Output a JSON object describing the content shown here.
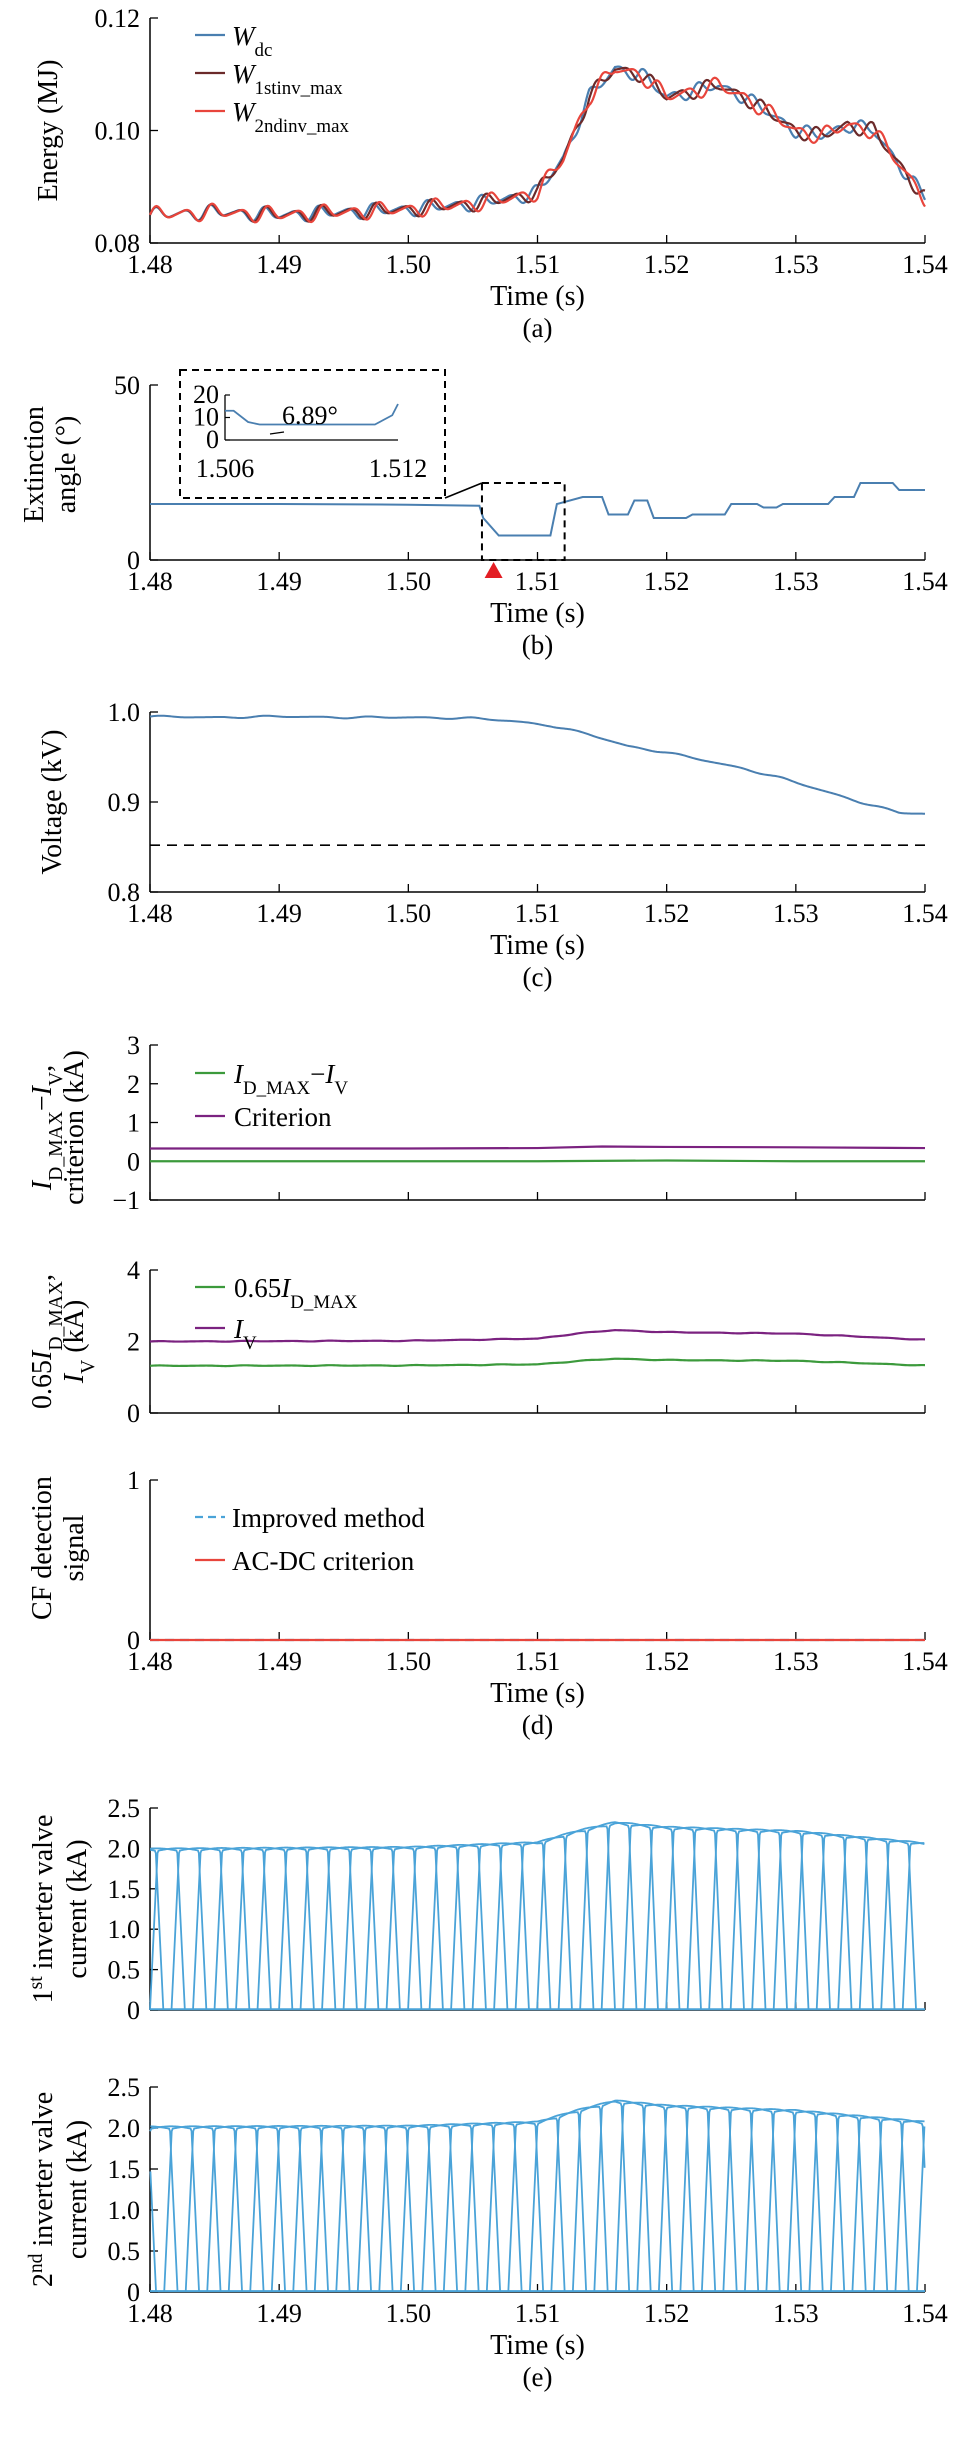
{
  "chart_data": [
    {
      "id": "a",
      "type": "line",
      "caption": "(a)",
      "xlabel": "Time (s)",
      "ylabel": "Energy (MJ)",
      "xlim": [
        1.48,
        1.54
      ],
      "ylim": [
        0.08,
        0.12
      ],
      "xticks": [
        "1.48",
        "1.49",
        "1.50",
        "1.51",
        "1.52",
        "1.53",
        "1.54"
      ],
      "yticks": [
        "0.08",
        "0.10",
        "0.12"
      ],
      "legend_position": "top-left",
      "series": [
        {
          "name": "W",
          "sub": "dc",
          "color": "#4a7fb0",
          "dash": "",
          "x": [
            1.48,
            1.485,
            1.49,
            1.495,
            1.5,
            1.505,
            1.508,
            1.51,
            1.512,
            1.514,
            1.516,
            1.518,
            1.52,
            1.522,
            1.524,
            1.526,
            1.528,
            1.53,
            1.532,
            1.534,
            1.536,
            1.538,
            1.54
          ],
          "y": [
            0.085,
            0.0855,
            0.085,
            0.0855,
            0.086,
            0.087,
            0.088,
            0.089,
            0.095,
            0.106,
            0.111,
            0.11,
            0.106,
            0.107,
            0.108,
            0.106,
            0.103,
            0.1,
            0.099,
            0.101,
            0.1,
            0.094,
            0.088
          ],
          "ripple": 0.0015
        },
        {
          "name": "W",
          "sub": "1stinv_max",
          "color": "#6b2a2a",
          "dash": "",
          "x": [
            1.48,
            1.485,
            1.49,
            1.495,
            1.5,
            1.505,
            1.508,
            1.51,
            1.512,
            1.514,
            1.516,
            1.518,
            1.52,
            1.522,
            1.524,
            1.526,
            1.528,
            1.53,
            1.532,
            1.534,
            1.536,
            1.538,
            1.54
          ],
          "y": [
            0.085,
            0.0855,
            0.085,
            0.0855,
            0.086,
            0.087,
            0.088,
            0.089,
            0.095,
            0.106,
            0.111,
            0.11,
            0.106,
            0.107,
            0.108,
            0.106,
            0.103,
            0.1,
            0.099,
            0.101,
            0.1,
            0.094,
            0.088
          ],
          "ripple": 0.0016
        },
        {
          "name": "W",
          "sub": "2ndinv_max",
          "color": "#e8453c",
          "dash": "",
          "x": [
            1.48,
            1.485,
            1.49,
            1.495,
            1.5,
            1.505,
            1.508,
            1.51,
            1.512,
            1.514,
            1.516,
            1.518,
            1.52,
            1.522,
            1.524,
            1.526,
            1.528,
            1.53,
            1.532,
            1.534,
            1.536,
            1.538,
            1.54
          ],
          "y": [
            0.085,
            0.0855,
            0.085,
            0.0855,
            0.086,
            0.087,
            0.088,
            0.089,
            0.095,
            0.106,
            0.111,
            0.11,
            0.106,
            0.107,
            0.108,
            0.106,
            0.103,
            0.1,
            0.099,
            0.101,
            0.1,
            0.094,
            0.088
          ],
          "ripple": 0.0017
        }
      ]
    },
    {
      "id": "b",
      "type": "line",
      "caption": "(b)",
      "xlabel": "Time (s)",
      "ylabel": [
        "Extinction",
        "angle (°)"
      ],
      "xlim": [
        1.48,
        1.54
      ],
      "ylim": [
        0,
        50
      ],
      "xticks": [
        "1.48",
        "1.49",
        "1.50",
        "1.51",
        "1.52",
        "1.53",
        "1.54"
      ],
      "yticks": [
        "0",
        "50"
      ],
      "series": [
        {
          "name": "",
          "color": "#4a7fb0",
          "step": true,
          "x": [
            1.48,
            1.49,
            1.5,
            1.5055,
            1.5058,
            1.507,
            1.511,
            1.5115,
            1.5135,
            1.514,
            1.515,
            1.5155,
            1.517,
            1.5175,
            1.5185,
            1.519,
            1.5215,
            1.522,
            1.5245,
            1.525,
            1.527,
            1.5275,
            1.5285,
            1.529,
            1.5325,
            1.533,
            1.5345,
            1.535,
            1.5375,
            1.538,
            1.54
          ],
          "y": [
            16,
            16,
            15.8,
            15.5,
            12,
            7,
            7,
            16,
            18,
            18,
            18,
            13,
            13,
            17,
            17,
            12,
            12,
            13,
            13,
            16,
            16,
            15,
            15,
            16,
            16,
            18,
            18,
            22,
            22,
            20,
            20
          ]
        },
        {
          "name": "",
          "color": "#4a7fb0",
          "step": true,
          "inset": true,
          "x": [
            1.506,
            1.5063,
            1.5068,
            1.5072,
            1.5112,
            1.5118,
            1.512
          ],
          "y": [
            13,
            13,
            8,
            6.89,
            6.89,
            11,
            16
          ]
        }
      ],
      "inset": {
        "xlim": [
          1.506,
          1.512
        ],
        "ylim": [
          0,
          20
        ],
        "yticks": [
          "0",
          "10",
          "20"
        ],
        "xticks": [
          "1.506",
          "1.512"
        ],
        "annotation": "6.89°"
      },
      "marker": {
        "x": 1.5066,
        "color": "#e31e24"
      }
    },
    {
      "id": "c",
      "type": "line",
      "caption": "(c)",
      "xlabel": "Time (s)",
      "ylabel": "Voltage (kV)",
      "xlim": [
        1.48,
        1.54
      ],
      "ylim": [
        0.8,
        1.0
      ],
      "xticks": [
        "1.48",
        "1.49",
        "1.50",
        "1.51",
        "1.52",
        "1.53",
        "1.54"
      ],
      "yticks": [
        "0.8",
        "0.9",
        "1.0"
      ],
      "series": [
        {
          "name": "",
          "color": "#4a7fb0",
          "x": [
            1.48,
            1.485,
            1.49,
            1.495,
            1.5,
            1.505,
            1.508,
            1.511,
            1.514,
            1.517,
            1.52,
            1.523,
            1.526,
            1.529,
            1.532,
            1.535,
            1.538,
            1.54
          ],
          "y": [
            0.995,
            0.994,
            0.995,
            0.994,
            0.994,
            0.993,
            0.99,
            0.985,
            0.975,
            0.962,
            0.955,
            0.946,
            0.937,
            0.926,
            0.913,
            0.9,
            0.888,
            0.887
          ],
          "ripple": 0.0012
        },
        {
          "name": "",
          "color": "#000000",
          "dash": "10,7",
          "x": [
            1.48,
            1.54
          ],
          "y": [
            0.852,
            0.852
          ]
        }
      ]
    },
    {
      "id": "d1",
      "type": "line",
      "xlabel": "",
      "ylabel": [
        "I_D_MAX−I_V,",
        "criterion (kA)"
      ],
      "xlim": [
        1.48,
        1.54
      ],
      "ylim": [
        -1,
        3
      ],
      "xticks": [],
      "yticks": [
        "−1",
        "0",
        "1",
        "2",
        "3"
      ],
      "legend_position": "top-left",
      "series": [
        {
          "name": "I",
          "sub": "D_MAX",
          "name2": "−I",
          "sub2": "V",
          "color": "#3c9a3c",
          "x": [
            1.48,
            1.5,
            1.51,
            1.52,
            1.53,
            1.54
          ],
          "y": [
            0.0,
            0.0,
            0.0,
            0.02,
            0.0,
            0.0
          ]
        },
        {
          "name": "Criterion",
          "color": "#7b2280",
          "x": [
            1.48,
            1.5,
            1.51,
            1.515,
            1.52,
            1.53,
            1.54
          ],
          "y": [
            0.33,
            0.33,
            0.34,
            0.38,
            0.37,
            0.36,
            0.34
          ]
        }
      ]
    },
    {
      "id": "d2",
      "type": "line",
      "xlabel": "",
      "ylabel": [
        "0.65I_D_MAX,",
        "I_V (kA)"
      ],
      "xlim": [
        1.48,
        1.54
      ],
      "ylim": [
        0,
        4
      ],
      "xticks": [],
      "yticks": [
        "0",
        "2",
        "4"
      ],
      "legend_position": "top-left",
      "series": [
        {
          "name": "0.65I",
          "sub": "D_MAX",
          "color": "#3c9a3c",
          "x": [
            1.48,
            1.5,
            1.51,
            1.513,
            1.516,
            1.52,
            1.53,
            1.54
          ],
          "y": [
            1.32,
            1.33,
            1.36,
            1.45,
            1.52,
            1.48,
            1.46,
            1.33
          ]
        },
        {
          "name": "I",
          "sub": "V",
          "color": "#7b2280",
          "x": [
            1.48,
            1.5,
            1.51,
            1.513,
            1.516,
            1.52,
            1.53,
            1.54
          ],
          "y": [
            2.0,
            2.02,
            2.08,
            2.22,
            2.32,
            2.26,
            2.22,
            2.05
          ]
        }
      ]
    },
    {
      "id": "d3",
      "type": "line",
      "caption": "(d)",
      "xlabel": "Time (s)",
      "ylabel": [
        "CF detection",
        "signal"
      ],
      "xlim": [
        1.48,
        1.54
      ],
      "ylim": [
        0,
        1
      ],
      "xticks": [
        "1.48",
        "1.49",
        "1.50",
        "1.51",
        "1.52",
        "1.53",
        "1.54"
      ],
      "yticks": [
        "0",
        "1"
      ],
      "legend_position": "top-left",
      "series": [
        {
          "name": "Improved method",
          "color": "#4aa3d8",
          "dash": "9,6",
          "x": [
            1.48,
            1.54
          ],
          "y": [
            0,
            0
          ]
        },
        {
          "name": "AC-DC criterion",
          "color": "#e8453c",
          "x": [
            1.48,
            1.54
          ],
          "y": [
            0,
            0
          ]
        }
      ]
    },
    {
      "id": "e1",
      "type": "line",
      "xlabel": "",
      "ylabel": [
        "1st inverter valve",
        "current (kA)"
      ],
      "xlim": [
        1.48,
        1.54
      ],
      "ylim": [
        0,
        2.5
      ],
      "xticks": [],
      "yticks": [
        "0",
        "0.5",
        "1.0",
        "1.5",
        "2.0",
        "2.5"
      ],
      "series": [
        {
          "name": "",
          "color": "#4aa3d8",
          "valve": true,
          "period": 0.00333,
          "offset": 0.0,
          "envelope_x": [
            1.48,
            1.5,
            1.51,
            1.513,
            1.516,
            1.52,
            1.53,
            1.54
          ],
          "envelope_y": [
            2.0,
            2.02,
            2.08,
            2.22,
            2.33,
            2.27,
            2.22,
            2.07
          ]
        }
      ]
    },
    {
      "id": "e2",
      "type": "line",
      "caption": "(e)",
      "xlabel": "Time (s)",
      "ylabel": [
        "2nd inverter valve",
        "current (kA)"
      ],
      "xlim": [
        1.48,
        1.54
      ],
      "ylim": [
        0,
        2.5
      ],
      "xticks": [
        "1.48",
        "1.49",
        "1.50",
        "1.51",
        "1.52",
        "1.53",
        "1.54"
      ],
      "yticks": [
        "0",
        "0.5",
        "1.0",
        "1.5",
        "2.0",
        "2.5"
      ],
      "series": [
        {
          "name": "",
          "color": "#4aa3d8",
          "valve": true,
          "period": 0.00333,
          "offset": 0.0011,
          "envelope_x": [
            1.48,
            1.5,
            1.51,
            1.513,
            1.516,
            1.52,
            1.53,
            1.54
          ],
          "envelope_y": [
            2.02,
            2.03,
            2.08,
            2.22,
            2.34,
            2.28,
            2.22,
            2.08
          ]
        }
      ]
    }
  ]
}
